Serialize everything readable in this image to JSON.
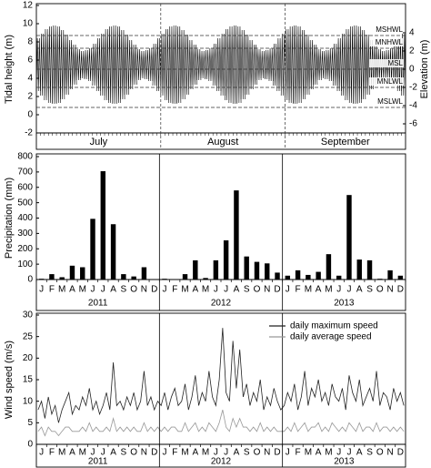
{
  "chart_data": [
    {
      "type": "range",
      "ylabel": "Tidal height (m)",
      "y2label": "Elevation (m)",
      "ylim": [
        -2,
        12
      ],
      "yticks": [
        -2,
        0,
        2,
        4,
        6,
        8,
        10,
        12
      ],
      "y2lim": [
        -7,
        7
      ],
      "y2ticks": [
        -6,
        -4,
        -2,
        0,
        2,
        4
      ],
      "months": [
        "July",
        "August",
        "September"
      ],
      "month_days": [
        31,
        31,
        30
      ],
      "series": [
        {
          "color": "#000",
          "values": [
            8.4,
            8.9,
            9.4,
            9.7,
            9.8,
            9.7,
            9.3,
            8.8,
            8.2,
            7.7,
            7.2,
            7.0,
            7.1,
            7.3,
            7.8,
            8.4,
            8.9,
            9.4,
            9.7,
            9.8,
            9.7,
            9.3,
            8.8,
            8.2,
            7.7,
            7.2,
            7.0,
            7.1,
            7.3,
            7.8,
            8.4,
            8.9,
            9.4,
            9.7,
            9.8,
            9.7,
            9.3,
            8.8,
            8.2,
            7.7,
            7.2,
            7.0,
            7.1,
            7.3,
            7.8,
            8.4,
            8.9,
            9.4,
            9.7,
            9.8,
            9.7,
            9.3,
            8.8,
            8.2,
            7.7,
            7.2,
            7.0,
            7.1,
            7.3,
            7.8,
            8.4,
            8.9,
            9.4,
            9.7,
            9.8,
            9.7,
            9.3,
            8.8,
            8.2,
            7.7,
            7.2,
            7.0,
            7.1,
            7.3,
            7.8,
            8.4,
            8.9,
            9.4,
            9.7,
            9.8,
            9.7,
            9.3,
            8.8,
            8.2,
            7.7,
            7.2,
            7.0,
            7.1,
            7.3,
            7.8,
            8.4,
            8.9
          ]
        },
        {
          "color": "#000",
          "values": [
            2.6,
            2.1,
            1.6,
            1.3,
            1.2,
            1.3,
            1.7,
            2.2,
            2.8,
            3.3,
            3.8,
            4.0,
            3.9,
            3.7,
            3.2,
            2.6,
            2.1,
            1.6,
            1.3,
            1.2,
            1.3,
            1.7,
            2.2,
            2.8,
            3.3,
            3.8,
            4.0,
            3.9,
            3.7,
            3.2,
            2.6,
            2.1,
            1.6,
            1.3,
            1.2,
            1.3,
            1.7,
            2.2,
            2.8,
            3.3,
            3.8,
            4.0,
            3.9,
            3.7,
            3.2,
            2.6,
            2.1,
            1.6,
            1.3,
            1.2,
            1.3,
            1.7,
            2.2,
            2.8,
            3.3,
            3.8,
            4.0,
            3.9,
            3.7,
            3.2,
            2.6,
            2.1,
            1.6,
            1.3,
            1.2,
            1.3,
            1.7,
            2.2,
            2.8,
            3.3,
            3.8,
            4.0,
            3.9,
            3.7,
            3.2,
            2.6,
            2.1,
            1.6,
            1.3,
            1.2,
            1.3,
            1.7,
            2.2,
            2.8,
            3.3,
            3.8,
            4.0,
            3.9,
            3.7,
            3.2,
            2.6,
            2.1
          ]
        }
      ],
      "reference_lines": [
        {
          "label": "MSHWL",
          "value": 3.7,
          "axis": "y2"
        },
        {
          "label": "MNHWL",
          "value": 2.3,
          "axis": "y2"
        },
        {
          "label": "MSL",
          "value": 0,
          "axis": "y2"
        },
        {
          "label": "MNLWL",
          "value": -2.0,
          "axis": "y2"
        },
        {
          "label": "MSLWL",
          "value": -4.2,
          "axis": "y2"
        }
      ]
    },
    {
      "type": "bar",
      "ylabel": "Precipitation (mm)",
      "ylim": [
        0,
        800
      ],
      "yticks": [
        0,
        100,
        200,
        300,
        400,
        500,
        600,
        700,
        800
      ],
      "color": "#000",
      "categories": [
        "J",
        "F",
        "M",
        "A",
        "M",
        "J",
        "J",
        "A",
        "S",
        "O",
        "N",
        "D",
        "J",
        "F",
        "M",
        "A",
        "M",
        "J",
        "J",
        "A",
        "S",
        "O",
        "N",
        "D",
        "J",
        "F",
        "M",
        "A",
        "M",
        "J",
        "J",
        "A",
        "S",
        "O",
        "N",
        "D"
      ],
      "groups": [
        "2011",
        "2012",
        "2013"
      ],
      "values": [
        5,
        35,
        15,
        90,
        80,
        395,
        705,
        360,
        35,
        20,
        80,
        3,
        5,
        2,
        35,
        125,
        10,
        125,
        255,
        580,
        150,
        115,
        105,
        45,
        25,
        60,
        30,
        50,
        165,
        25,
        550,
        130,
        125,
        5,
        60,
        25
      ]
    },
    {
      "type": "line",
      "ylabel": "Wind speed (m/s)",
      "ylim": [
        0,
        30
      ],
      "yticks": [
        0,
        5,
        10,
        15,
        20,
        25,
        30
      ],
      "legend": "upper right",
      "categories": [
        null,
        "J",
        null,
        null,
        "F",
        null,
        null,
        "M",
        null,
        null,
        "A",
        null,
        null,
        "M",
        null,
        null,
        "J",
        null,
        null,
        "J",
        null,
        null,
        "A",
        null,
        null,
        "S",
        null,
        null,
        "O",
        null,
        null,
        "N",
        null,
        null,
        "D",
        null,
        null,
        "J",
        null,
        null,
        "F",
        null,
        null,
        "M",
        null,
        null,
        "A",
        null,
        null,
        "M",
        null,
        null,
        "J",
        null,
        null,
        "J",
        null,
        null,
        "A",
        null,
        null,
        "S",
        null,
        null,
        "O",
        null,
        null,
        "N",
        null,
        null,
        "D",
        null,
        null,
        "J",
        null,
        null,
        "F",
        null,
        null,
        "M",
        null,
        null,
        "A",
        null,
        null,
        "M",
        null,
        null,
        "J",
        null,
        null,
        "J",
        null,
        null,
        "A",
        null,
        null,
        "S",
        null,
        null,
        "O",
        null,
        null,
        "N",
        null,
        null,
        "D",
        null
      ],
      "groups": [
        "2011",
        "2012",
        "2013"
      ],
      "series": [
        {
          "name": "daily maximum speed",
          "color": "#222",
          "values": [
            8,
            10,
            6,
            11,
            7,
            9,
            5,
            8,
            10,
            12,
            7,
            9,
            8,
            11,
            9,
            13,
            8,
            10,
            7,
            9,
            12,
            8,
            19,
            9,
            10,
            8,
            11,
            9,
            12,
            8,
            10,
            17,
            9,
            11,
            8,
            10,
            9,
            12,
            8,
            11,
            13,
            9,
            10,
            14,
            8,
            11,
            16,
            9,
            12,
            10,
            17,
            11,
            9,
            15,
            27,
            12,
            10,
            24,
            13,
            22,
            11,
            14,
            9,
            12,
            10,
            15,
            8,
            11,
            9,
            13,
            10,
            8,
            9,
            12,
            10,
            14,
            8,
            11,
            17,
            9,
            13,
            11,
            15,
            10,
            12,
            9,
            14,
            11,
            10,
            13,
            8,
            16,
            12,
            10,
            15,
            9,
            11,
            13,
            10,
            17,
            9,
            12,
            11,
            8,
            13,
            10,
            12,
            9
          ]
        },
        {
          "name": "daily average speed",
          "color": "#999",
          "values": [
            3,
            4,
            2,
            4,
            3,
            3,
            2,
            3,
            4,
            4,
            3,
            3,
            3,
            4,
            3,
            5,
            3,
            4,
            3,
            3,
            4,
            3,
            6,
            3,
            4,
            3,
            4,
            3,
            4,
            3,
            3,
            5,
            3,
            4,
            3,
            4,
            3,
            4,
            3,
            4,
            4,
            3,
            3,
            5,
            3,
            4,
            5,
            3,
            4,
            3,
            5,
            4,
            3,
            5,
            8,
            4,
            3,
            6,
            4,
            6,
            4,
            4,
            3,
            4,
            3,
            5,
            3,
            4,
            3,
            4,
            3,
            3,
            3,
            4,
            3,
            5,
            3,
            4,
            5,
            3,
            4,
            4,
            5,
            3,
            4,
            3,
            5,
            4,
            3,
            4,
            3,
            5,
            4,
            3,
            5,
            3,
            4,
            4,
            3,
            5,
            3,
            4,
            4,
            3,
            4,
            3,
            4,
            3
          ]
        }
      ]
    }
  ]
}
